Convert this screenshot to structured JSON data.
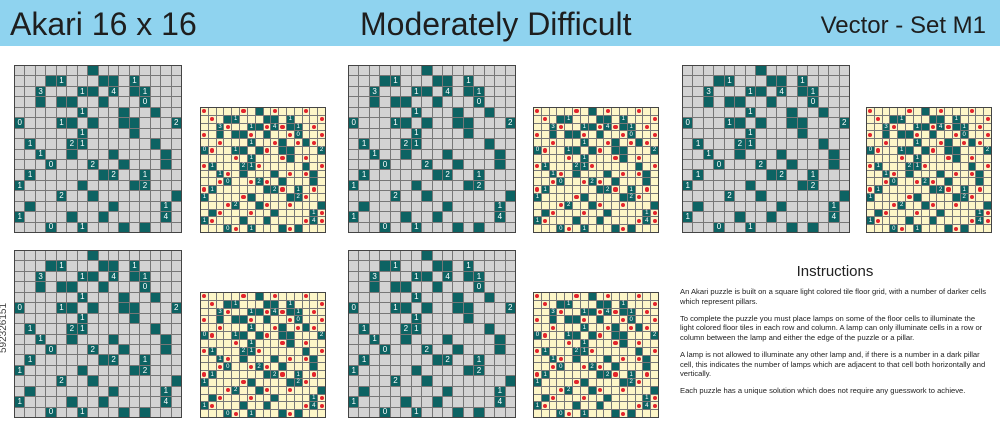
{
  "header": {
    "title_left": "Akari 16 x 16",
    "title_center": "Moderately Difficult",
    "title_right": "Vector - Set M1"
  },
  "side_id": "592326151",
  "colors": {
    "header_bg": "#8fd3ef",
    "floor": "#d3d3d3",
    "solution_floor": "#fdf6c8",
    "pillar": "#0d6363",
    "lamp": "#e3242b"
  },
  "puzzle_pillars": [
    [
      7,
      0,
      ""
    ],
    [
      3,
      1,
      ""
    ],
    [
      4,
      1,
      "1"
    ],
    [
      8,
      1,
      ""
    ],
    [
      9,
      1,
      ""
    ],
    [
      11,
      1,
      "1"
    ],
    [
      2,
      2,
      "3"
    ],
    [
      6,
      2,
      "1"
    ],
    [
      7,
      2,
      ""
    ],
    [
      9,
      2,
      "4"
    ],
    [
      11,
      2,
      ""
    ],
    [
      12,
      2,
      "1"
    ],
    [
      2,
      3,
      ""
    ],
    [
      4,
      3,
      ""
    ],
    [
      5,
      3,
      ""
    ],
    [
      8,
      3,
      ""
    ],
    [
      12,
      3,
      "0"
    ],
    [
      6,
      4,
      "1"
    ],
    [
      10,
      4,
      ""
    ],
    [
      13,
      4,
      ""
    ],
    [
      0,
      5,
      "0"
    ],
    [
      4,
      5,
      "1"
    ],
    [
      5,
      5,
      ""
    ],
    [
      7,
      5,
      ""
    ],
    [
      10,
      5,
      ""
    ],
    [
      11,
      5,
      ""
    ],
    [
      15,
      5,
      "2"
    ],
    [
      6,
      6,
      "1"
    ],
    [
      11,
      6,
      ""
    ],
    [
      1,
      7,
      "1"
    ],
    [
      5,
      7,
      "2"
    ],
    [
      6,
      7,
      "1"
    ],
    [
      13,
      7,
      ""
    ],
    [
      2,
      8,
      "1"
    ],
    [
      5,
      8,
      ""
    ],
    [
      9,
      8,
      ""
    ],
    [
      14,
      8,
      ""
    ],
    [
      3,
      9,
      "0"
    ],
    [
      7,
      9,
      "2"
    ],
    [
      10,
      9,
      ""
    ],
    [
      14,
      9,
      ""
    ],
    [
      1,
      10,
      "1"
    ],
    [
      8,
      10,
      ""
    ],
    [
      9,
      10,
      "2"
    ],
    [
      12,
      10,
      "1"
    ],
    [
      0,
      11,
      "1"
    ],
    [
      6,
      11,
      ""
    ],
    [
      11,
      11,
      ""
    ],
    [
      12,
      11,
      "2"
    ],
    [
      4,
      12,
      "2"
    ],
    [
      7,
      12,
      ""
    ],
    [
      15,
      12,
      ""
    ],
    [
      1,
      13,
      ""
    ],
    [
      9,
      13,
      ""
    ],
    [
      14,
      13,
      "1"
    ],
    [
      0,
      14,
      "1"
    ],
    [
      5,
      14,
      ""
    ],
    [
      8,
      14,
      ""
    ],
    [
      14,
      14,
      "4"
    ],
    [
      3,
      15,
      "0"
    ],
    [
      6,
      15,
      "1"
    ],
    [
      10,
      15,
      ""
    ],
    [
      12,
      15,
      ""
    ]
  ],
  "lamps": [
    [
      0,
      0
    ],
    [
      5,
      0
    ],
    [
      9,
      0
    ],
    [
      13,
      0
    ],
    [
      1,
      1
    ],
    [
      15,
      1
    ],
    [
      3,
      2
    ],
    [
      8,
      2
    ],
    [
      10,
      2
    ],
    [
      14,
      2
    ],
    [
      0,
      3
    ],
    [
      6,
      3
    ],
    [
      11,
      3
    ],
    [
      15,
      3
    ],
    [
      2,
      4
    ],
    [
      9,
      4
    ],
    [
      12,
      4
    ],
    [
      14,
      4
    ],
    [
      1,
      5
    ],
    [
      8,
      5
    ],
    [
      4,
      6
    ],
    [
      10,
      6
    ],
    [
      13,
      6
    ],
    [
      0,
      7
    ],
    [
      7,
      7
    ],
    [
      15,
      7
    ],
    [
      3,
      8
    ],
    [
      11,
      8
    ],
    [
      13,
      8
    ],
    [
      2,
      9
    ],
    [
      6,
      9
    ],
    [
      8,
      9
    ],
    [
      0,
      10
    ],
    [
      10,
      10
    ],
    [
      14,
      10
    ],
    [
      5,
      11
    ],
    [
      13,
      11
    ],
    [
      3,
      12
    ],
    [
      8,
      12
    ],
    [
      11,
      12
    ],
    [
      2,
      13
    ],
    [
      6,
      13
    ],
    [
      15,
      13
    ],
    [
      1,
      14
    ],
    [
      13,
      14
    ],
    [
      15,
      14
    ],
    [
      4,
      15
    ],
    [
      11,
      15
    ]
  ],
  "instructions": {
    "heading": "Instructions",
    "p1": "An Akari puzzle is built on a square light colored tile floor grid, with a number of darker cells which represent pillars.",
    "p2": "To complete the puzzle you must place lamps on some of the floor cells to illuminate the light colored floor tiles in each row and column. A lamp can only illuminate cells in a row or column between the lamp and either the edge of the puzzle or a pillar.",
    "p3": "A lamp is not allowed to illuminate any other lamp and, if there is a number in a dark pillar cell, this indicates the number of lamps which are adjacent to that cell both horizontally and vertically.",
    "p4": "Each puzzle has a unique solution which does not require any guesswork to achieve."
  }
}
